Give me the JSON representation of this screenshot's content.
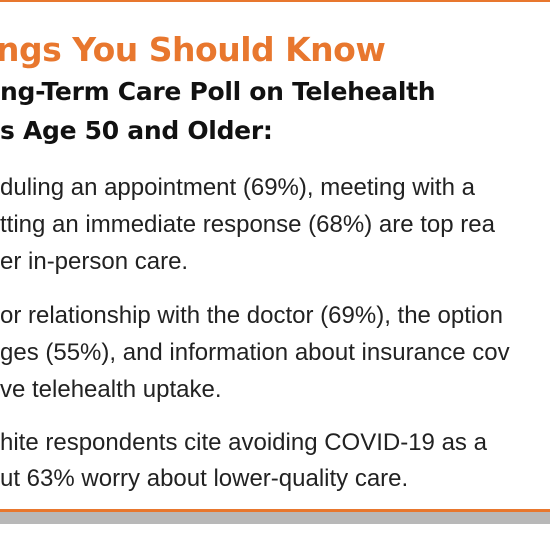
{
  "heading": "ngs You Should Know",
  "subheading": {
    "line1": "ng-Term Care Poll on Telehealth",
    "line2": "s Age 50 and Older:"
  },
  "findings": [
    {
      "lines": [
        "duling an appointment (69%), meeting with a",
        "tting an immediate response (68%) are top rea",
        "er in-person care."
      ]
    },
    {
      "lines": [
        "or relationship with the doctor (69%), the option",
        "ges (55%), and information about insurance cov",
        "ve telehealth uptake."
      ]
    },
    {
      "lines": [
        "hite respondents cite avoiding COVID-19 as a",
        "ut 63% worry about lower-quality care."
      ]
    }
  ],
  "colors": {
    "accent": "#e8772e",
    "footer_band": "#b8b8b8",
    "text": "#222222"
  }
}
